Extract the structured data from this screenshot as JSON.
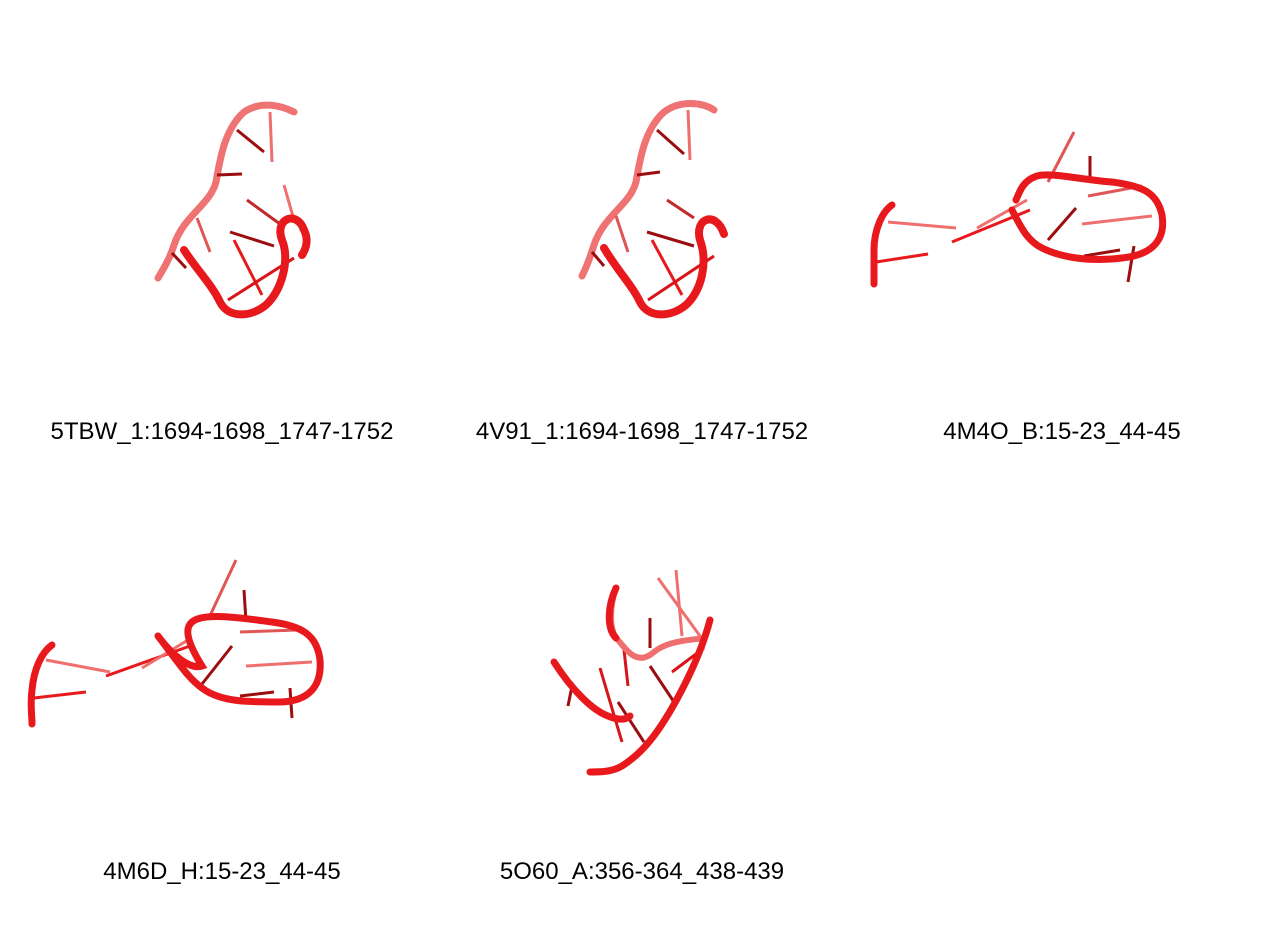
{
  "panels": [
    {
      "label": "5TBW_1:1694-1698_1747-1752"
    },
    {
      "label": "4V91_1:1694-1698_1747-1752"
    },
    {
      "label": "4M4O_B:15-23_44-45"
    },
    {
      "label": "4M6D_H:15-23_44-45"
    },
    {
      "label": "5O60_A:356-364_438-439"
    }
  ],
  "colors": {
    "backbone": "#e8191c",
    "backbone_light": "#ef6f6f",
    "base": "#d91418",
    "base_dark": "#9c0d10"
  }
}
